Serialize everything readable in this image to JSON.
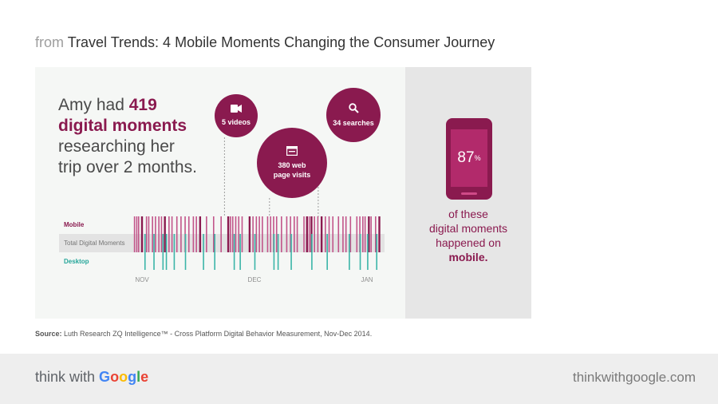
{
  "header": {
    "prefix": "from",
    "title": "Travel Trends: 4 Mobile Moments Changing the Consumer Journey"
  },
  "headline": {
    "part1": "Amy had ",
    "number": "419",
    "part2": "digital moments",
    "line3": "researching her",
    "line4": "trip over 2 months."
  },
  "callouts": [
    {
      "label_line1": "5 videos",
      "label_line2": "",
      "icon": "video-camera-icon",
      "at_day": 22
    },
    {
      "label_line1": "380 web",
      "label_line2": "page visits",
      "icon": "browser-window-icon",
      "at_day": 34
    },
    {
      "label_line1": "34 searches",
      "label_line2": "",
      "icon": "search-icon",
      "at_day": 47
    }
  ],
  "phone": {
    "percent": "87",
    "unit": "%",
    "caption_lines": [
      "of these",
      "digital moments",
      "happened on"
    ],
    "caption_bold": "mobile."
  },
  "source": {
    "label": "Source:",
    "text": "Luth Research ZQ Intelligence™ - Cross Platform Digital Behavior Measurement, Nov-Dec 2014."
  },
  "footer": {
    "brand_prefix": "think with ",
    "url": "thinkwithgoogle.com"
  },
  "chart_data": {
    "type": "timeline",
    "title": "Amy had 419 digital moments researching her trip over 2 months.",
    "row_labels": {
      "mobile": "Mobile",
      "total": "Total Digital Moments",
      "desktop": "Desktop"
    },
    "months": [
      {
        "label": "NOV",
        "day": 0
      },
      {
        "label": "DEC",
        "day": 30
      },
      {
        "label": "JAN",
        "day": 60
      }
    ],
    "x_range_days": [
      -2,
      64
    ],
    "mobile_days": [
      -2,
      -1.4,
      -0.9,
      0,
      1.2,
      1.8,
      2.8,
      3.6,
      4.5,
      5.2,
      6.1,
      7.2,
      8,
      9.3,
      10.4,
      11.5,
      12.5,
      13.7,
      14.5,
      15.5,
      17.2,
      19.1,
      21.1,
      23,
      23.6,
      24.2,
      25,
      25.8,
      26.7,
      28.7,
      29.6,
      30.5,
      31.3,
      32.1,
      33.5,
      34.3,
      35.1,
      35.9,
      37.2,
      38.6,
      39.6,
      40.6,
      41.4,
      43.2,
      44,
      44.6,
      45.2,
      46,
      46.9,
      47.9,
      48.9,
      49.9,
      50.9,
      52.4,
      53.6,
      54.4,
      55.6,
      57.3,
      58.1,
      58.9,
      59.5,
      60.5,
      61.1,
      62.3,
      63.3
    ],
    "mobile_heavy_days": [
      0,
      6.1,
      15.5,
      23,
      28.7,
      44,
      45.2,
      47.9,
      60.5,
      63.3
    ],
    "desktop_days": [
      0.8,
      3.2,
      5.6,
      6.5,
      8.6,
      11.6,
      16.4,
      19.4,
      24.6,
      26.2,
      30.1,
      35.2,
      36.3,
      39.8,
      45.3,
      49.4,
      55.3,
      58.2,
      60.2,
      62.6
    ]
  }
}
